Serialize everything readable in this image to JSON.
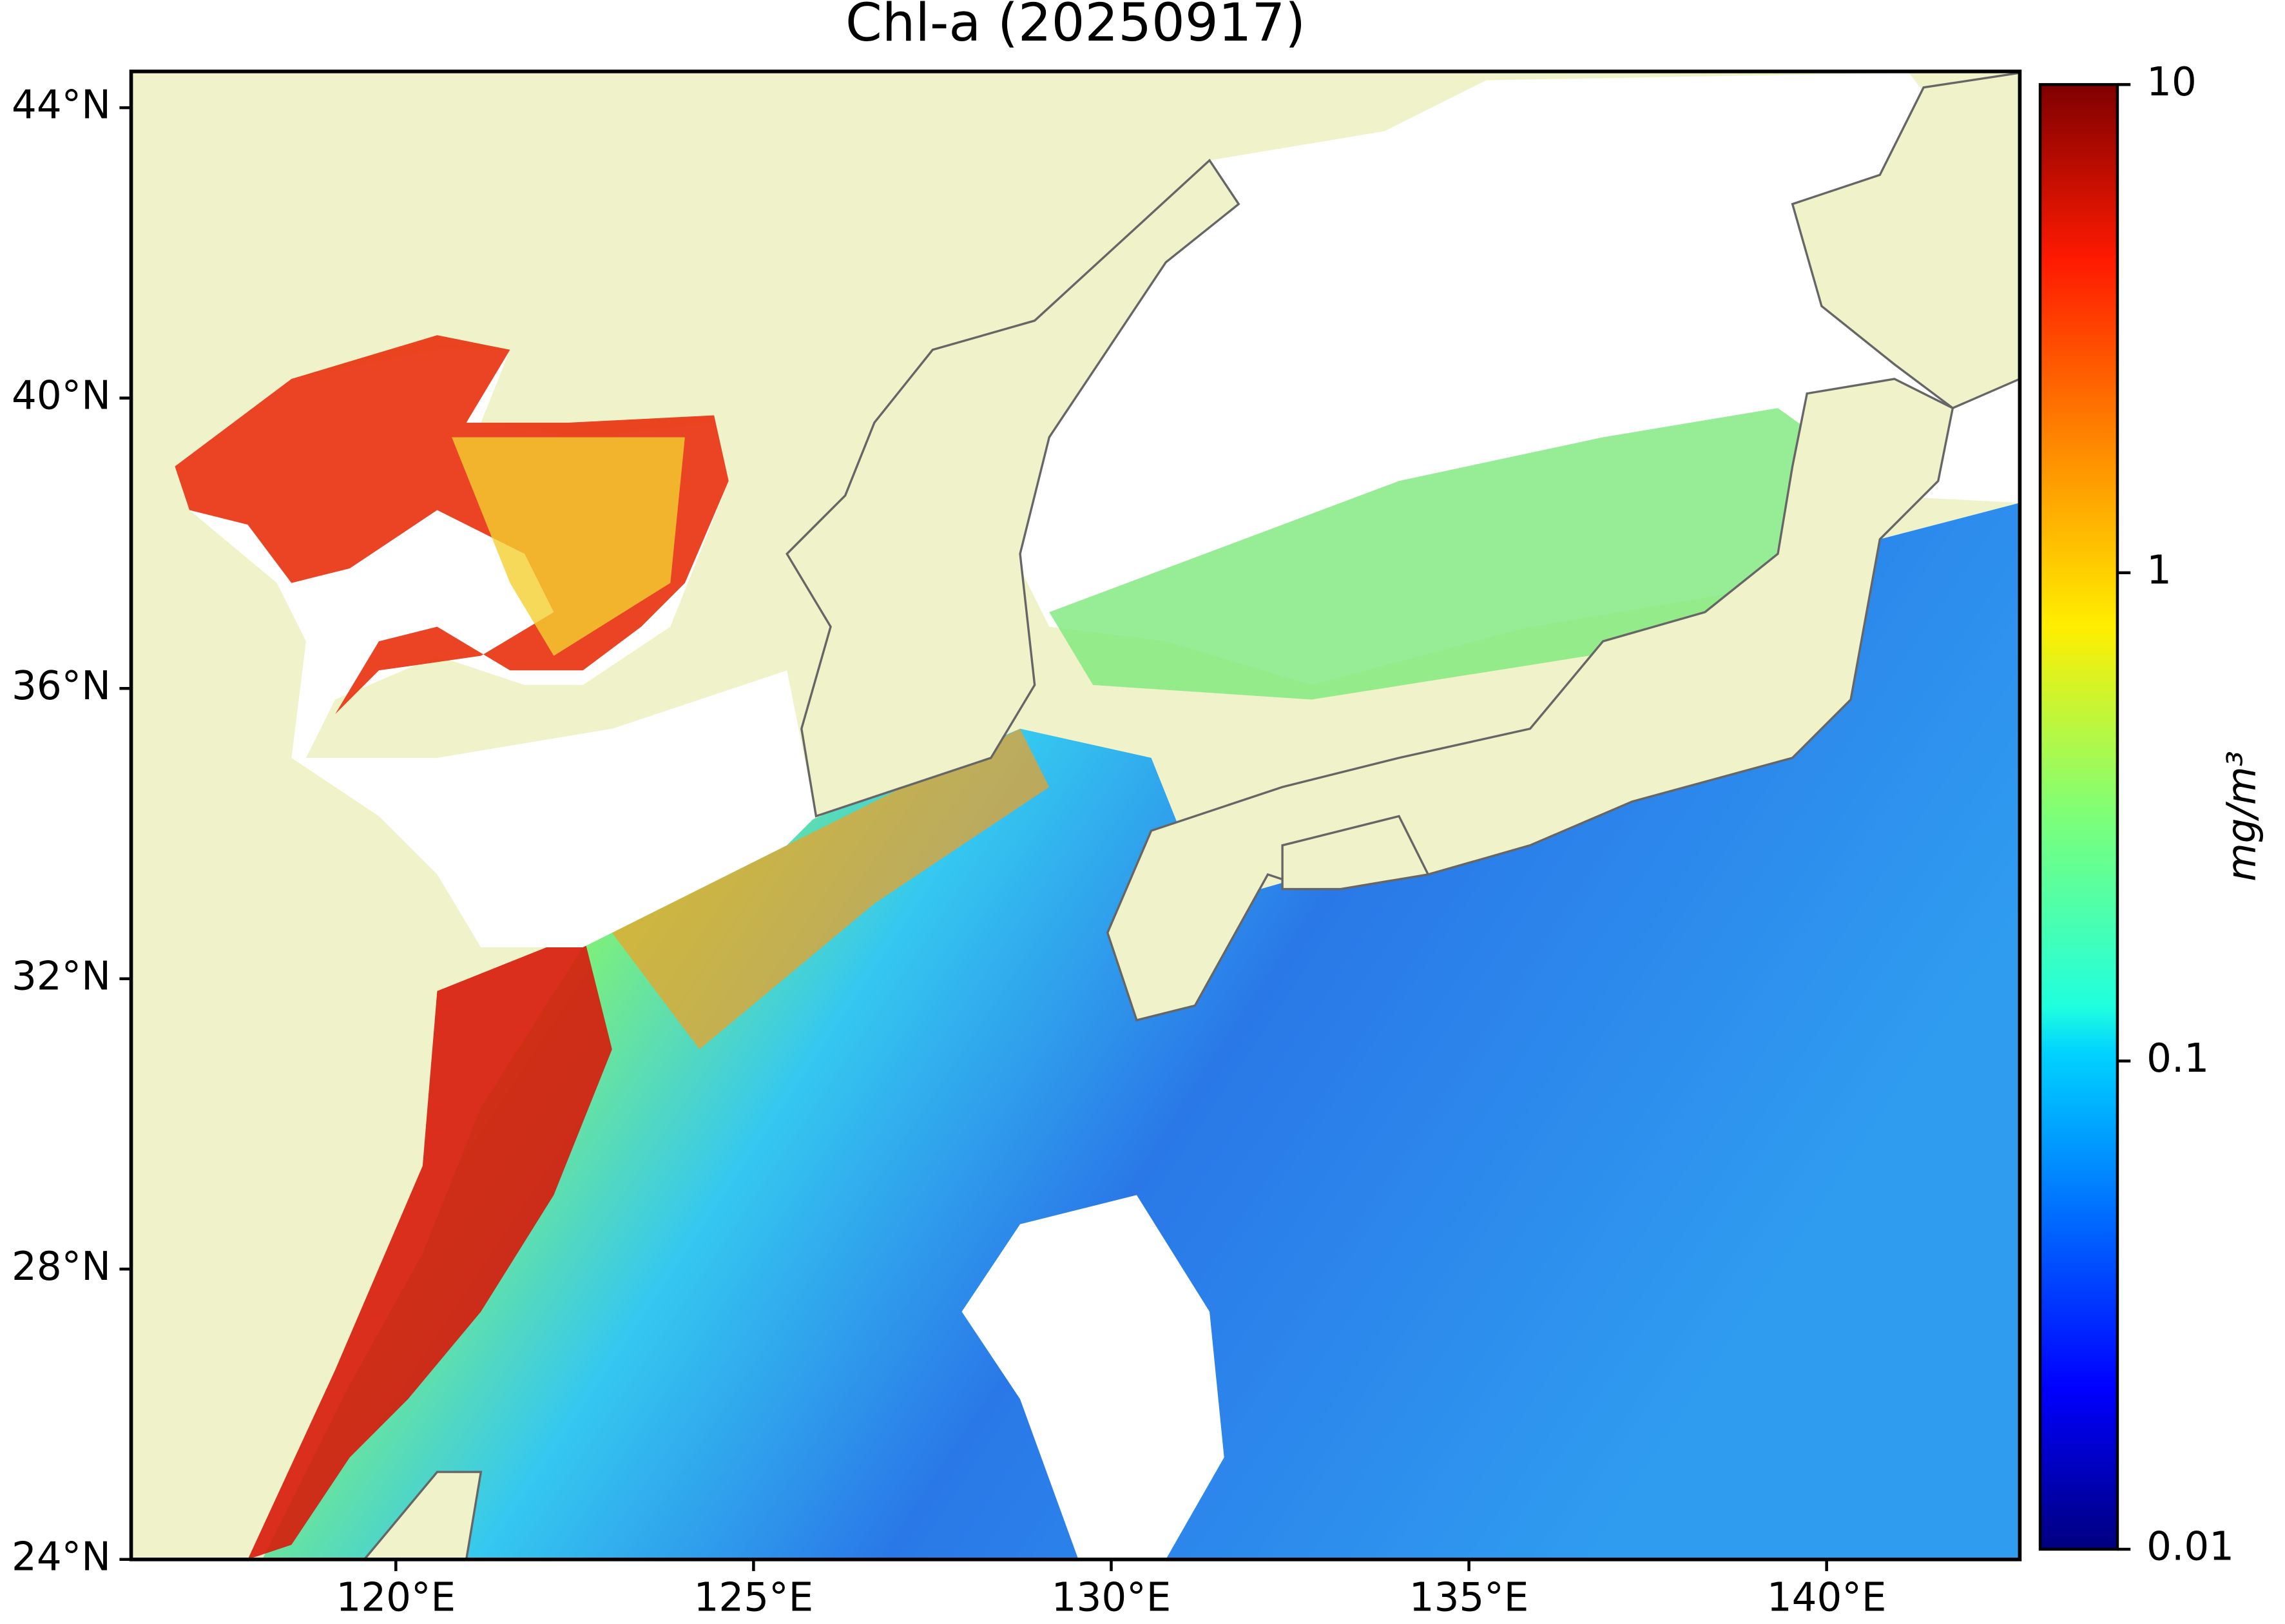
{
  "title": "Chl-a (20250917)",
  "map": {
    "xlim": [
      116.3,
      142.7
    ],
    "ylim": [
      24,
      44.5
    ],
    "xticks": [
      {
        "value": 120,
        "label": "120°E"
      },
      {
        "value": 125,
        "label": "125°E"
      },
      {
        "value": 130,
        "label": "130°E"
      },
      {
        "value": 135,
        "label": "135°E"
      },
      {
        "value": 140,
        "label": "140°E"
      }
    ],
    "yticks": [
      {
        "value": 24,
        "label": "24°N"
      },
      {
        "value": 28,
        "label": "28°N"
      },
      {
        "value": 32,
        "label": "32°N"
      },
      {
        "value": 36,
        "label": "36°N"
      },
      {
        "value": 40,
        "label": "40°N"
      },
      {
        "value": 44,
        "label": "44°N"
      }
    ]
  },
  "colorbar": {
    "label": "mg/m³",
    "scale": "log",
    "lim": [
      0.01,
      10
    ],
    "ticks": [
      0.01,
      0.1,
      1,
      10
    ],
    "colormap": "jet"
  }
}
